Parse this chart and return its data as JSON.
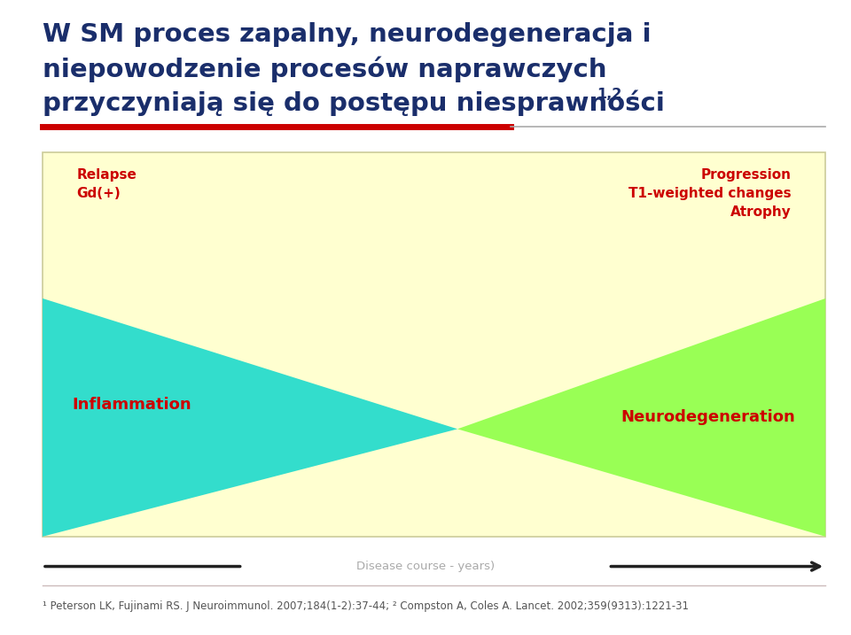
{
  "title_line1": "W SM proces zapalny, neurodegeneracja i",
  "title_line2": "niepowodzenie procesów naprawczych",
  "title_line3": "przyczyniają się do postępu niesprawności",
  "title_superscript": "1,2",
  "title_color": "#1a2e6b",
  "title_fontsize": 21,
  "red_bar_color": "#cc0000",
  "bg_color": "#ffffff",
  "box_bg_color": "#ffffd0",
  "box_border_color": "#cccc99",
  "cyan_color": "#33ddcc",
  "green_color": "#99ff55",
  "label_top_left": "Relapse\nGd(+)",
  "label_top_right": "Progression\nT1-weighted changes\nAtrophy",
  "label_inflammation": "Inflammation",
  "label_neurodegeneration": "Neurodegeneration",
  "label_color": "#cc0000",
  "axis_label": "Disease course - years)",
  "axis_label_color": "#aaaaaa",
  "footnote": "¹ Peterson LK, Fujinami RS. J Neuroimmunol. 2007;184(1-2):37-44; ² Compston A, Coles A. Lancet. 2002;359(9313):1221-31",
  "footnote_color": "#555555",
  "footnote_fontsize": 8.5
}
